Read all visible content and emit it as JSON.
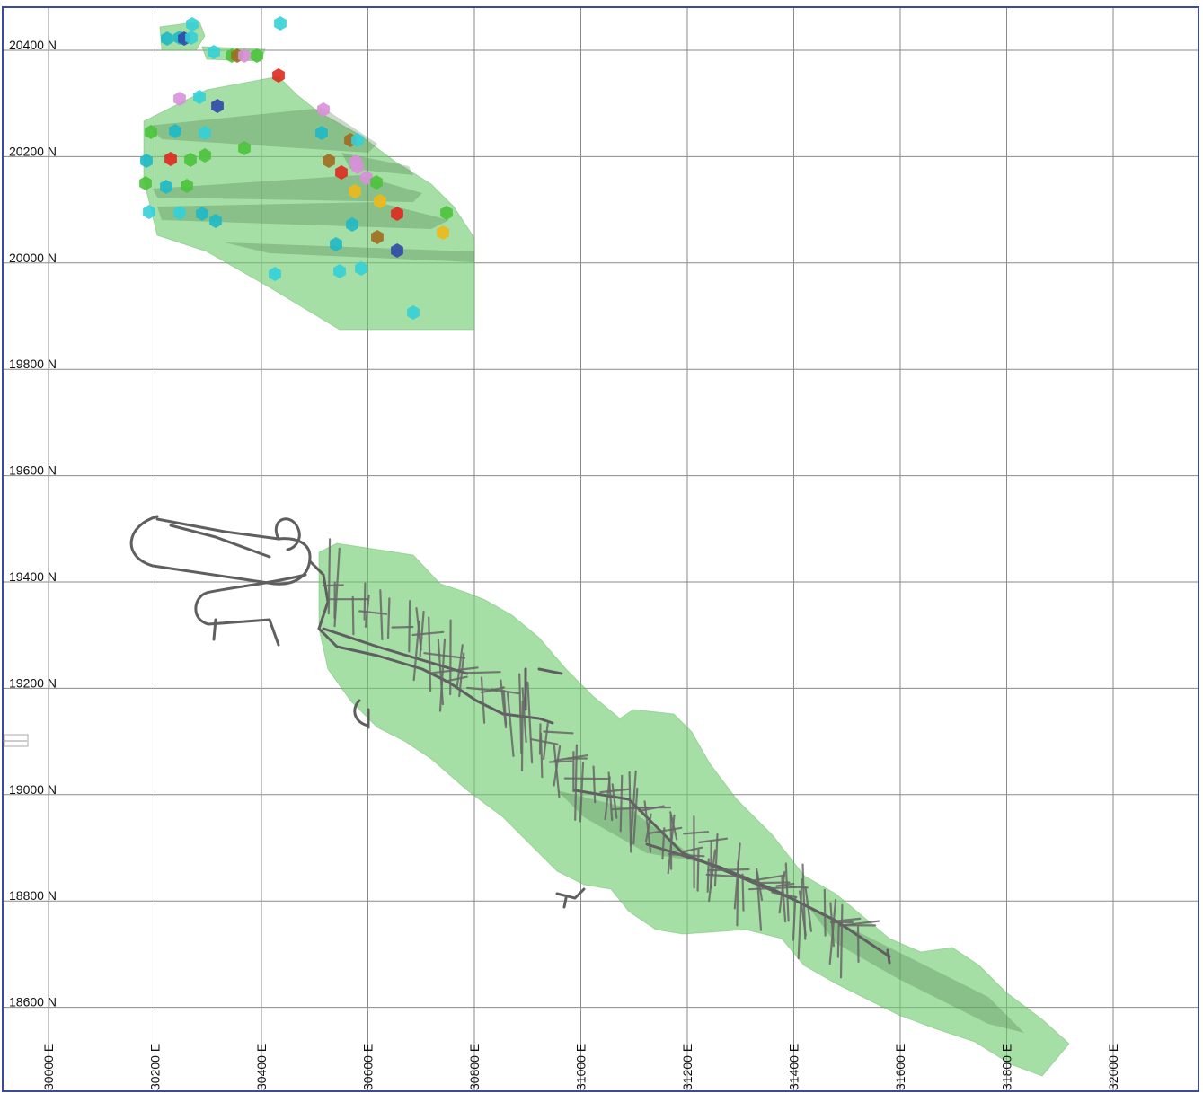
{
  "map": {
    "northing_labels": [
      "20400 N",
      "20200 N",
      "20000 N",
      "19800 N",
      "19600 N",
      "19400 N",
      "19200 N",
      "19000 N",
      "18800 N",
      "18600 N"
    ],
    "easting_labels": [
      "30000 E",
      "30200 E",
      "30400 E",
      "30600 E",
      "30800 E",
      "31000 E",
      "31200 E",
      "31400 E",
      "31600 E",
      "31800 E",
      "32000 E"
    ],
    "colors": {
      "orebody": "#6fcc6f",
      "development_drives": "#5f5f5f",
      "frame": "#3b4a9c",
      "grid": "#8a8a8a"
    },
    "drillhole_colors": [
      "#1fb8c8",
      "#35d0d8",
      "#4cc23c",
      "#e0281e",
      "#3048a8",
      "#d890d8",
      "#f0b818",
      "#a06c20",
      "#6ad048"
    ]
  }
}
